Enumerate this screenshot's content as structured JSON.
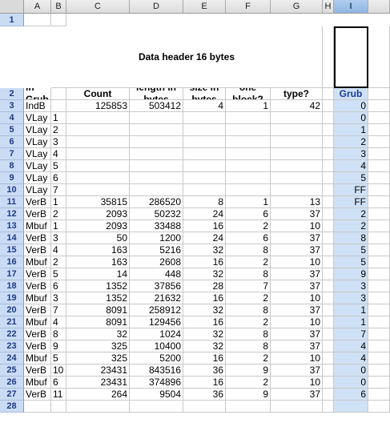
{
  "columns": [
    "A",
    "B",
    "C",
    "D",
    "E",
    "F",
    "G",
    "H",
    "I"
  ],
  "selected_column": "I",
  "table_title": "Data header 16 bytes",
  "headers": [
    "Name in Grub Index",
    "",
    "Entries Count (DWORD)",
    "Data length in bytes (DWORD)",
    "Block size in bytes (WORD)",
    "Units in one block? (WORD)",
    "Data type? (DWORD)",
    "",
    "Id in Grub Index"
  ],
  "rows": [
    [
      "IndB",
      "",
      "125853",
      "503412",
      "4",
      "1",
      "42",
      "",
      "0"
    ],
    [
      "VLay",
      "1",
      "",
      "",
      "",
      "",
      "",
      "",
      "0"
    ],
    [
      "VLay",
      "2",
      "",
      "",
      "",
      "",
      "",
      "",
      "1"
    ],
    [
      "VLay",
      "3",
      "",
      "",
      "",
      "",
      "",
      "",
      "2"
    ],
    [
      "VLay",
      "4",
      "",
      "",
      "",
      "",
      "",
      "",
      "3"
    ],
    [
      "VLay",
      "5",
      "",
      "",
      "",
      "",
      "",
      "",
      "4"
    ],
    [
      "VLay",
      "6",
      "",
      "",
      "",
      "",
      "",
      "",
      "5"
    ],
    [
      "VLay",
      "7",
      "",
      "",
      "",
      "",
      "",
      "",
      "FF"
    ],
    [
      "VerB",
      "1",
      "35815",
      "286520",
      "8",
      "1",
      "13",
      "",
      "FF"
    ],
    [
      "VerB",
      "2",
      "2093",
      "50232",
      "24",
      "6",
      "37",
      "",
      "2"
    ],
    [
      "Mbuf",
      "1",
      "2093",
      "33488",
      "16",
      "2",
      "10",
      "",
      "2"
    ],
    [
      "VerB",
      "3",
      "50",
      "1200",
      "24",
      "6",
      "37",
      "",
      "8"
    ],
    [
      "VerB",
      "4",
      "163",
      "5216",
      "32",
      "8",
      "37",
      "",
      "5"
    ],
    [
      "Mbuf",
      "2",
      "163",
      "2608",
      "16",
      "2",
      "10",
      "",
      "5"
    ],
    [
      "VerB",
      "5",
      "14",
      "448",
      "32",
      "8",
      "37",
      "",
      "9"
    ],
    [
      "VerB",
      "6",
      "1352",
      "37856",
      "28",
      "7",
      "37",
      "",
      "3"
    ],
    [
      "Mbuf",
      "3",
      "1352",
      "21632",
      "16",
      "2",
      "10",
      "",
      "3"
    ],
    [
      "VerB",
      "7",
      "8091",
      "258912",
      "32",
      "8",
      "37",
      "",
      "1"
    ],
    [
      "Mbuf",
      "4",
      "8091",
      "129456",
      "16",
      "2",
      "10",
      "",
      "1"
    ],
    [
      "VerB",
      "8",
      "32",
      "1024",
      "32",
      "8",
      "37",
      "",
      "7"
    ],
    [
      "VerB",
      "9",
      "325",
      "10400",
      "32",
      "8",
      "37",
      "",
      "4"
    ],
    [
      "Mbuf",
      "5",
      "325",
      "5200",
      "16",
      "2",
      "10",
      "",
      "4"
    ],
    [
      "VerB",
      "10",
      "23431",
      "843516",
      "36",
      "9",
      "37",
      "",
      "0"
    ],
    [
      "Mbuf",
      "6",
      "23431",
      "374896",
      "16",
      "2",
      "10",
      "",
      "0"
    ],
    [
      "VerB",
      "11",
      "264",
      "9504",
      "36",
      "9",
      "37",
      "",
      "6"
    ]
  ],
  "row_numbers": [
    "1",
    "2",
    "3",
    "4",
    "5",
    "6",
    "7",
    "8",
    "9",
    "10",
    "11",
    "12",
    "13",
    "14",
    "15",
    "16",
    "17",
    "18",
    "19",
    "20",
    "21",
    "22",
    "23",
    "24",
    "25",
    "26",
    "27",
    "28"
  ],
  "colors": {
    "selection_fill": "#cfe1f6",
    "row_header_fill": "#c9dcf3",
    "row_header_text": "#1d3a8a",
    "grid_line": "#c8c8c8"
  }
}
